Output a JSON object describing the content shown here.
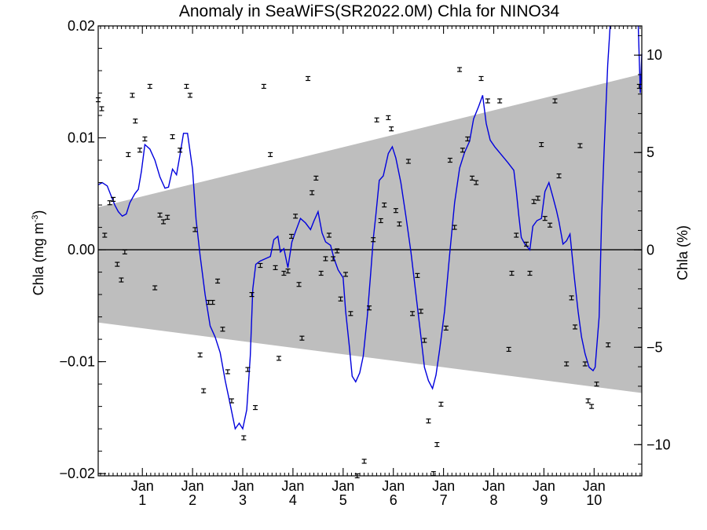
{
  "chart_data": {
    "type": "line",
    "title": "Anomaly in SeaWiFS(SR2022.0M) Chla for NINO34",
    "ylabel_left": "Chla (mg m",
    "ylabel_left_sup": "-3",
    "ylabel_left_close": ")",
    "ylabel_right": "Chla (%)",
    "xlim": [
      0.12,
      10.95
    ],
    "ylim_left": [
      -0.0202,
      0.02
    ],
    "ylim_right": [
      -11.6,
      11.5
    ],
    "grid": false,
    "x_ticks": [
      {
        "x": 1,
        "top": "Jan",
        "bottom": "1"
      },
      {
        "x": 2,
        "top": "Jan",
        "bottom": "2"
      },
      {
        "x": 3,
        "top": "Jan",
        "bottom": "3"
      },
      {
        "x": 4,
        "top": "Jan",
        "bottom": "4"
      },
      {
        "x": 5,
        "top": "Jan",
        "bottom": "5"
      },
      {
        "x": 6,
        "top": "Jan",
        "bottom": "6"
      },
      {
        "x": 7,
        "top": "Jan",
        "bottom": "7"
      },
      {
        "x": 8,
        "top": "Jan",
        "bottom": "8"
      },
      {
        "x": 9,
        "top": "Jan",
        "bottom": "9"
      },
      {
        "x": 10,
        "top": "Jan",
        "bottom": "10"
      }
    ],
    "y_ticks_left": [
      {
        "v": 0.02,
        "label": "0.02"
      },
      {
        "v": 0.01,
        "label": "0.01"
      },
      {
        "v": 0.0,
        "label": "0.00"
      },
      {
        "v": -0.01,
        "label": "−0.01"
      },
      {
        "v": -0.02,
        "label": "−0.02"
      }
    ],
    "y_ticks_right": [
      {
        "v": 10,
        "label": "10"
      },
      {
        "v": 5,
        "label": "5"
      },
      {
        "v": 0,
        "label": "0"
      },
      {
        "v": -5,
        "label": "−5"
      },
      {
        "v": -10,
        "label": "−10"
      }
    ],
    "band": {
      "x": [
        0.12,
        10.95
      ],
      "upper": [
        0.0038,
        0.0157
      ],
      "lower": [
        -0.0065,
        -0.0128
      ],
      "color": "#bebebe"
    },
    "zero_line": 0.0,
    "smoothed_line": {
      "color": "#0000dd",
      "points": [
        [
          0.12,
          0.0058
        ],
        [
          0.2,
          0.006
        ],
        [
          0.3,
          0.0057
        ],
        [
          0.38,
          0.0048
        ],
        [
          0.45,
          0.004
        ],
        [
          0.52,
          0.0034
        ],
        [
          0.6,
          0.003
        ],
        [
          0.68,
          0.0032
        ],
        [
          0.75,
          0.0042
        ],
        [
          0.85,
          0.005
        ],
        [
          0.92,
          0.0054
        ],
        [
          0.98,
          0.007
        ],
        [
          1.05,
          0.0094
        ],
        [
          1.15,
          0.009
        ],
        [
          1.25,
          0.008
        ],
        [
          1.35,
          0.0065
        ],
        [
          1.45,
          0.0055
        ],
        [
          1.52,
          0.0056
        ],
        [
          1.6,
          0.0072
        ],
        [
          1.68,
          0.0067
        ],
        [
          1.75,
          0.0085
        ],
        [
          1.82,
          0.0104
        ],
        [
          1.9,
          0.0104
        ],
        [
          2.0,
          0.0072
        ],
        [
          2.07,
          0.0027
        ],
        [
          2.15,
          -0.0005
        ],
        [
          2.25,
          -0.004
        ],
        [
          2.35,
          -0.0068
        ],
        [
          2.45,
          -0.0078
        ],
        [
          2.55,
          -0.0092
        ],
        [
          2.65,
          -0.0117
        ],
        [
          2.75,
          -0.0138
        ],
        [
          2.85,
          -0.016
        ],
        [
          2.93,
          -0.0155
        ],
        [
          3.0,
          -0.016
        ],
        [
          3.08,
          -0.0143
        ],
        [
          3.15,
          -0.0095
        ],
        [
          3.2,
          -0.0035
        ],
        [
          3.26,
          -0.0013
        ],
        [
          3.35,
          -0.001
        ],
        [
          3.45,
          -0.0008
        ],
        [
          3.55,
          -0.0006
        ],
        [
          3.62,
          0.0009
        ],
        [
          3.7,
          0.0012
        ],
        [
          3.75,
          -0.0002
        ],
        [
          3.82,
          0.0001
        ],
        [
          3.9,
          -0.0016
        ],
        [
          3.98,
          0.0007
        ],
        [
          4.05,
          0.0016
        ],
        [
          4.15,
          0.0028
        ],
        [
          4.25,
          0.0024
        ],
        [
          4.35,
          0.0018
        ],
        [
          4.42,
          0.0026
        ],
        [
          4.5,
          0.0034
        ],
        [
          4.58,
          0.0015
        ],
        [
          4.65,
          0.0007
        ],
        [
          4.75,
          0.0004
        ],
        [
          4.82,
          -0.0008
        ],
        [
          4.9,
          -0.0018
        ],
        [
          5.0,
          -0.0025
        ],
        [
          5.05,
          -0.0055
        ],
        [
          5.12,
          -0.0085
        ],
        [
          5.18,
          -0.0113
        ],
        [
          5.25,
          -0.0118
        ],
        [
          5.33,
          -0.011
        ],
        [
          5.4,
          -0.0095
        ],
        [
          5.48,
          -0.006
        ],
        [
          5.55,
          -0.002
        ],
        [
          5.6,
          0.001
        ],
        [
          5.65,
          0.003
        ],
        [
          5.72,
          0.0062
        ],
        [
          5.8,
          0.0066
        ],
        [
          5.9,
          0.0086
        ],
        [
          5.98,
          0.0092
        ],
        [
          6.05,
          0.0082
        ],
        [
          6.15,
          0.006
        ],
        [
          6.25,
          0.003
        ],
        [
          6.35,
          -0.0002
        ],
        [
          6.45,
          -0.004
        ],
        [
          6.55,
          -0.0078
        ],
        [
          6.62,
          -0.0105
        ],
        [
          6.7,
          -0.0117
        ],
        [
          6.78,
          -0.0124
        ],
        [
          6.85,
          -0.0112
        ],
        [
          6.92,
          -0.009
        ],
        [
          7.02,
          -0.0055
        ],
        [
          7.12,
          -0.0005
        ],
        [
          7.22,
          0.0042
        ],
        [
          7.32,
          0.0073
        ],
        [
          7.42,
          0.0087
        ],
        [
          7.52,
          0.0097
        ],
        [
          7.6,
          0.0117
        ],
        [
          7.7,
          0.0128
        ],
        [
          7.78,
          0.0138
        ],
        [
          7.85,
          0.0113
        ],
        [
          7.93,
          0.0098
        ],
        [
          8.02,
          0.0092
        ],
        [
          8.15,
          0.0085
        ],
        [
          8.28,
          0.0078
        ],
        [
          8.4,
          0.0071
        ],
        [
          8.45,
          0.0052
        ],
        [
          8.5,
          0.003
        ],
        [
          8.55,
          0.0011
        ],
        [
          8.62,
          0.0005
        ],
        [
          8.72,
          0.0
        ],
        [
          8.78,
          0.0021
        ],
        [
          8.86,
          0.0026
        ],
        [
          8.95,
          0.0028
        ],
        [
          9.02,
          0.0052
        ],
        [
          9.1,
          0.006
        ],
        [
          9.18,
          0.0047
        ],
        [
          9.25,
          0.0035
        ],
        [
          9.3,
          0.0025
        ],
        [
          9.38,
          0.0005
        ],
        [
          9.45,
          0.0008
        ],
        [
          9.52,
          0.0014
        ],
        [
          9.6,
          -0.0022
        ],
        [
          9.68,
          -0.0055
        ],
        [
          9.75,
          -0.0078
        ],
        [
          9.82,
          -0.0093
        ],
        [
          9.9,
          -0.0105
        ],
        [
          9.98,
          -0.0108
        ],
        [
          10.02,
          -0.0105
        ],
        [
          10.1,
          -0.006
        ],
        [
          10.15,
          0.003
        ],
        [
          10.2,
          0.009
        ],
        [
          10.27,
          0.0165
        ],
        [
          10.32,
          0.021
        ]
      ],
      "tail_points": [
        [
          10.88,
          0.021
        ],
        [
          10.92,
          0.014
        ],
        [
          10.95,
          0.0175
        ]
      ]
    },
    "monthly_points": {
      "color": "#000000",
      "points": [
        [
          0.12,
          0.0134
        ],
        [
          0.19,
          0.0126
        ],
        [
          0.25,
          0.0013
        ],
        [
          0.35,
          0.0042
        ],
        [
          0.42,
          0.0045
        ],
        [
          0.5,
          -0.0013
        ],
        [
          0.58,
          -0.0027
        ],
        [
          0.65,
          -0.0002
        ],
        [
          0.72,
          0.0085
        ],
        [
          0.8,
          0.0138
        ],
        [
          0.86,
          0.0115
        ],
        [
          0.95,
          0.0089
        ],
        [
          1.05,
          0.0099
        ],
        [
          1.15,
          0.0146
        ],
        [
          1.25,
          -0.0034
        ],
        [
          1.35,
          0.0031
        ],
        [
          1.42,
          0.0025
        ],
        [
          1.5,
          0.0029
        ],
        [
          1.6,
          0.0101
        ],
        [
          1.75,
          0.0089
        ],
        [
          1.88,
          0.0146
        ],
        [
          1.95,
          0.0138
        ],
        [
          2.05,
          0.0018
        ],
        [
          2.15,
          -0.0094
        ],
        [
          2.22,
          -0.0126
        ],
        [
          2.32,
          -0.0047
        ],
        [
          2.4,
          -0.0047
        ],
        [
          2.5,
          -0.0028
        ],
        [
          2.6,
          -0.0071
        ],
        [
          2.7,
          -0.0109
        ],
        [
          2.78,
          -0.0135
        ],
        [
          3.02,
          -0.0168
        ],
        [
          3.1,
          -0.0107
        ],
        [
          3.18,
          -0.004
        ],
        [
          3.25,
          -0.0141
        ],
        [
          3.35,
          -0.0014
        ],
        [
          3.42,
          0.0146
        ],
        [
          3.55,
          0.0085
        ],
        [
          3.65,
          -0.0016
        ],
        [
          3.72,
          -0.0097
        ],
        [
          3.82,
          -0.0021
        ],
        [
          3.9,
          -0.0019
        ],
        [
          3.97,
          0.0012
        ],
        [
          4.05,
          0.003
        ],
        [
          4.12,
          -0.0031
        ],
        [
          4.18,
          -0.0079
        ],
        [
          4.3,
          0.0153
        ],
        [
          4.38,
          0.0051
        ],
        [
          4.46,
          0.0064
        ],
        [
          4.56,
          -0.0021
        ],
        [
          4.65,
          -0.0008
        ],
        [
          4.72,
          0.0013
        ],
        [
          4.8,
          -0.0008
        ],
        [
          4.88,
          -0.0001
        ],
        [
          4.95,
          -0.0044
        ],
        [
          5.05,
          -0.0022
        ],
        [
          5.15,
          -0.0057
        ],
        [
          5.28,
          -0.0202
        ],
        [
          5.42,
          -0.0189
        ],
        [
          5.52,
          -0.0052
        ],
        [
          5.6,
          0.0009
        ],
        [
          5.67,
          0.0116
        ],
        [
          5.75,
          0.0026
        ],
        [
          5.82,
          0.004
        ],
        [
          5.9,
          0.0118
        ],
        [
          5.96,
          0.0108
        ],
        [
          6.05,
          0.0035
        ],
        [
          6.12,
          0.0023
        ],
        [
          6.3,
          0.0079
        ],
        [
          6.38,
          -0.0057
        ],
        [
          6.48,
          -0.0023
        ],
        [
          6.55,
          -0.0055
        ],
        [
          6.62,
          -0.0081
        ],
        [
          6.7,
          -0.0153
        ],
        [
          6.8,
          -0.02
        ],
        [
          6.87,
          -0.0174
        ],
        [
          6.95,
          -0.0138
        ],
        [
          7.05,
          -0.007
        ],
        [
          7.13,
          0.008
        ],
        [
          7.22,
          0.002
        ],
        [
          7.32,
          0.0161
        ],
        [
          7.38,
          0.0089
        ],
        [
          7.48,
          0.0099
        ],
        [
          7.57,
          0.0064
        ],
        [
          7.65,
          0.006
        ],
        [
          7.75,
          0.0153
        ],
        [
          7.88,
          0.0133
        ],
        [
          8.12,
          0.0133
        ],
        [
          8.3,
          -0.0089
        ],
        [
          8.36,
          -0.0021
        ],
        [
          8.45,
          0.0013
        ],
        [
          8.65,
          0.0005
        ],
        [
          8.72,
          -0.0021
        ],
        [
          8.8,
          0.0043
        ],
        [
          8.88,
          0.0046
        ],
        [
          8.95,
          0.0094
        ],
        [
          9.02,
          0.0028
        ],
        [
          9.12,
          0.0022
        ],
        [
          9.22,
          0.0133
        ],
        [
          9.3,
          0.0066
        ],
        [
          9.45,
          -0.0102
        ],
        [
          9.55,
          -0.0043
        ],
        [
          9.62,
          -0.0069
        ],
        [
          9.72,
          0.0093
        ],
        [
          9.82,
          -0.0102
        ],
        [
          9.88,
          -0.0135
        ],
        [
          9.95,
          -0.014
        ],
        [
          10.05,
          -0.012
        ],
        [
          10.28,
          -0.0085
        ],
        [
          10.9,
          0.0146
        ]
      ]
    }
  }
}
